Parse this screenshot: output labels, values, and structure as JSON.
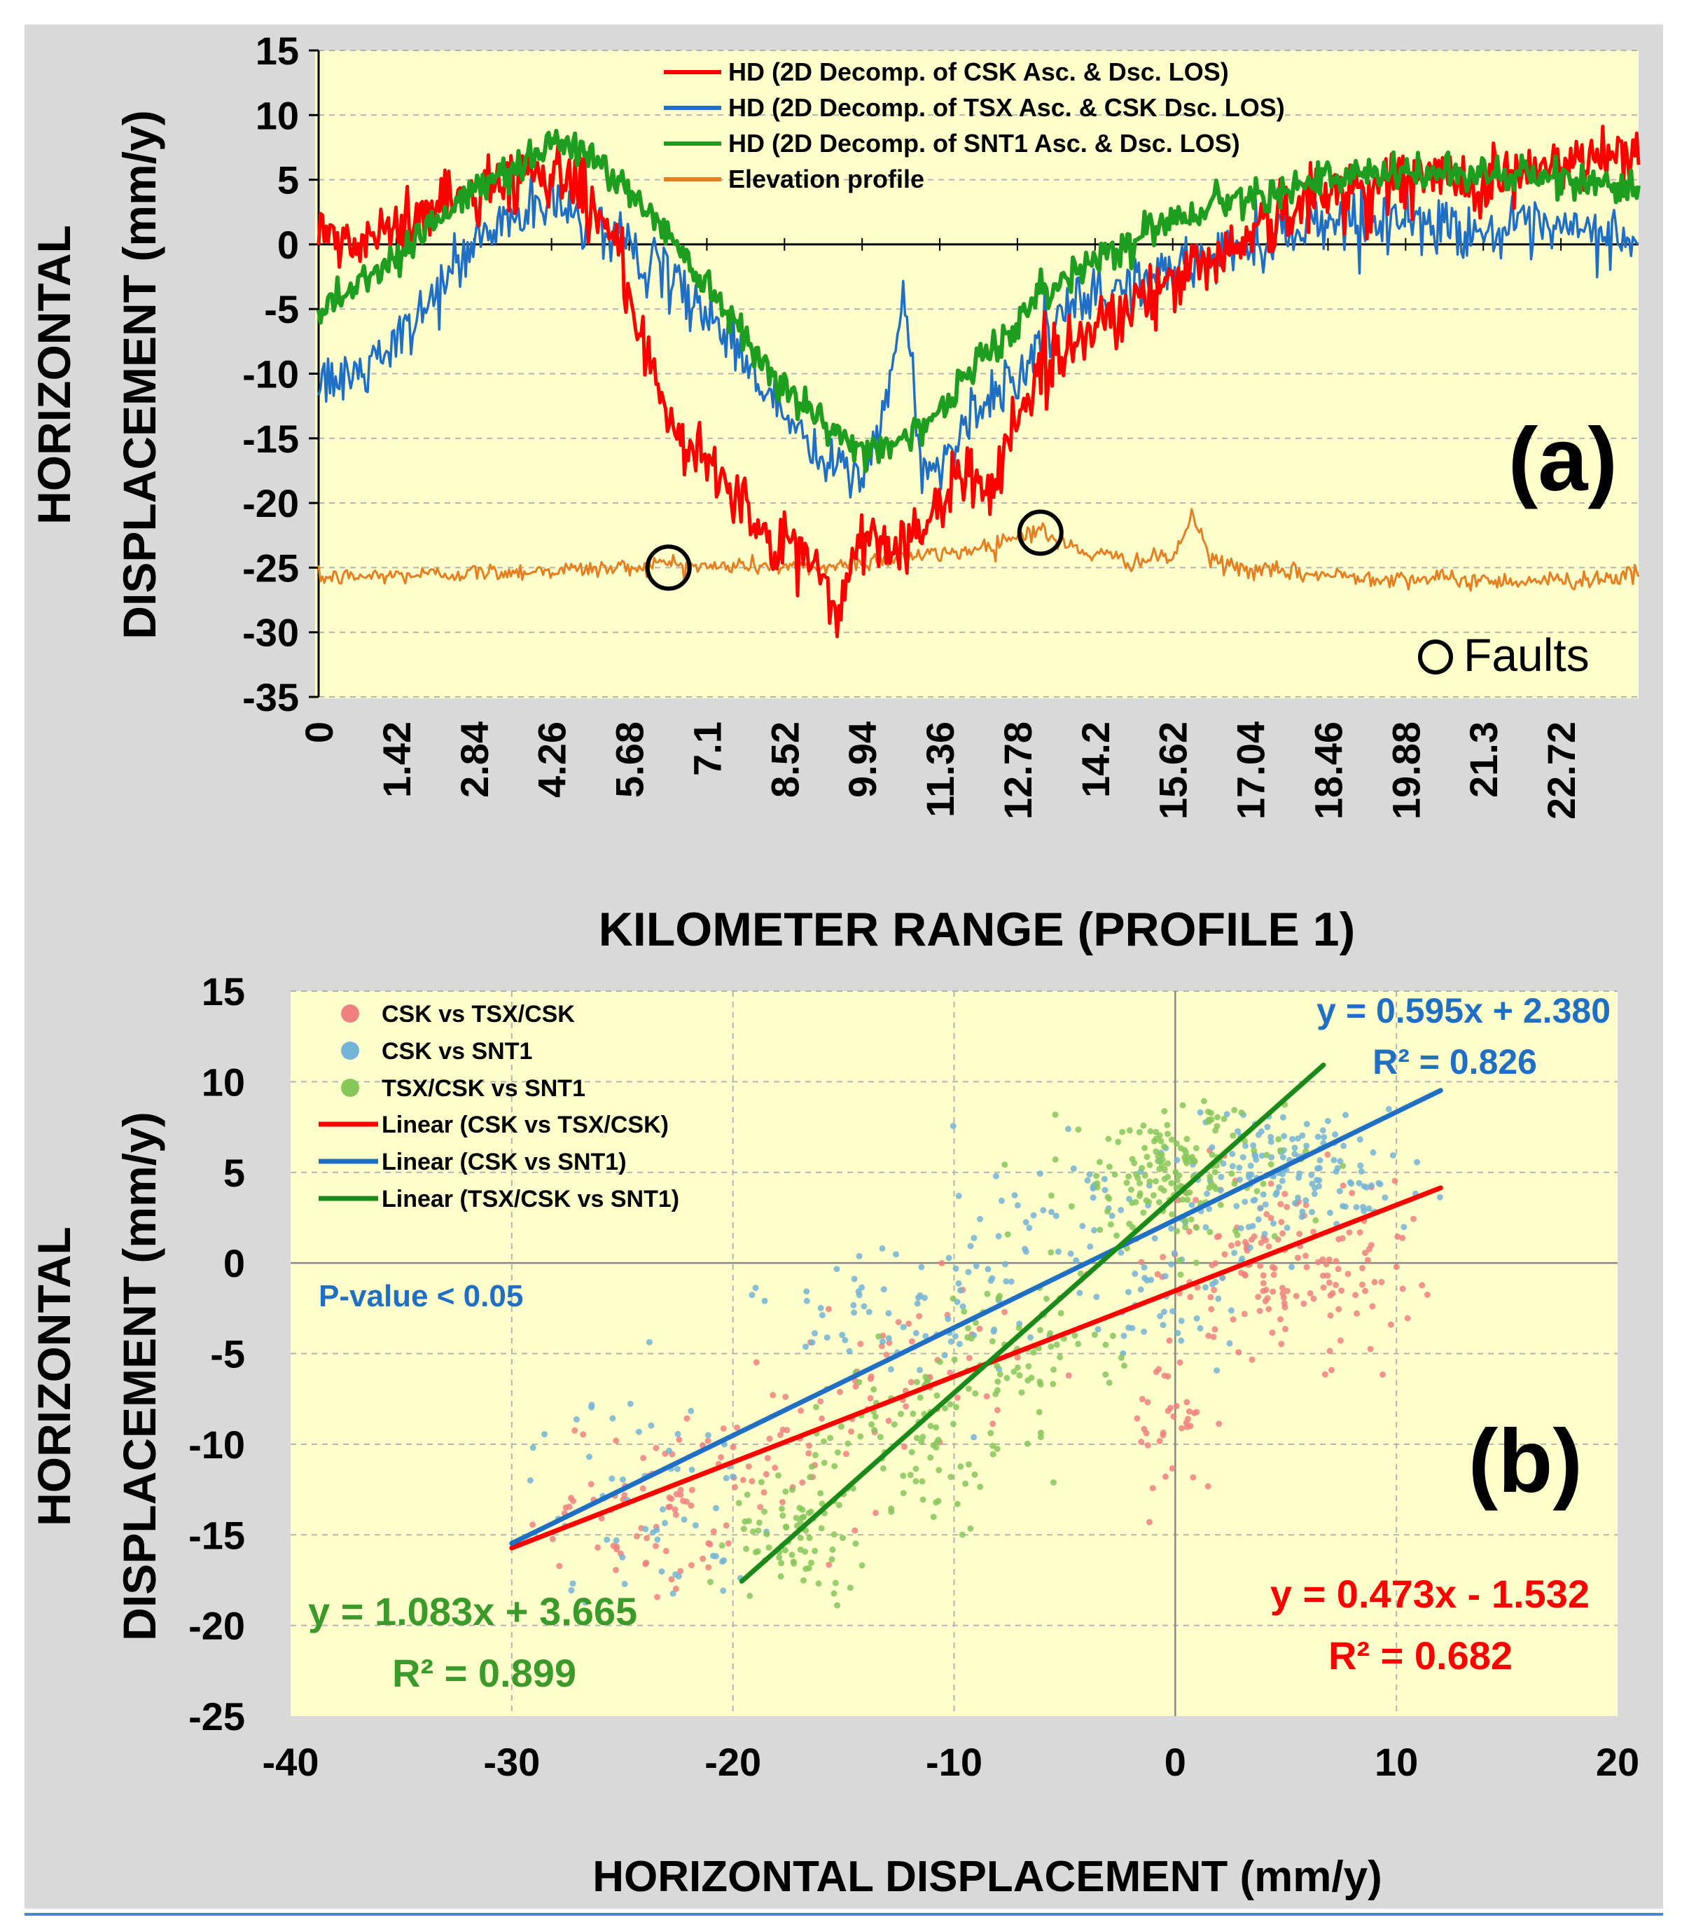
{
  "colors": {
    "panel_bg": "#d9d9d9",
    "plot_bg": "#ffffcc",
    "grid": "#b3b3b3",
    "hd_csk": "#ff0000",
    "hd_tsx": "#1f6fc5",
    "hd_snt1": "#1e9e1e",
    "elevation": "#e67e22",
    "scatter_red": "#f08080",
    "scatter_blue": "#74b4d6",
    "scatter_green": "#86c75a",
    "line_red": "#ff0000",
    "line_blue": "#1f6fc5",
    "line_green": "#1a8a1a",
    "eq_blue": "#1f6fc5",
    "eq_red": "#ff0000",
    "eq_green": "#3a9a2a",
    "rule": "#4a86c8"
  },
  "chart_data": [
    {
      "type": "line",
      "panel_label": "(a)",
      "ylabel_line1": "HORIZONTAL",
      "ylabel_line2": "DISPLACEMENT (mm/y)",
      "xlabel": "KILOMETER RANGE (PROFILE 1)",
      "ylim": [
        -35,
        15
      ],
      "xlim": [
        0,
        24.14
      ],
      "yticks": [
        "15",
        "10",
        "5",
        "0",
        "-5",
        "-10",
        "-15",
        "-20",
        "-25",
        "-30",
        "-35"
      ],
      "xticks": [
        "0",
        "1.42",
        "2.84",
        "4.26",
        "5.68",
        "7.1",
        "8.52",
        "9.94",
        "11.36",
        "12.78",
        "14.2",
        "15.62",
        "17.04",
        "18.46",
        "19.88",
        "21.3",
        "22.72"
      ],
      "xtick_values": [
        0,
        1.42,
        2.84,
        4.26,
        5.68,
        7.1,
        8.52,
        9.94,
        11.36,
        12.78,
        14.2,
        15.62,
        17.04,
        18.46,
        19.88,
        21.3,
        22.72
      ],
      "grid": true,
      "legend_placement": "top-center",
      "series": [
        {
          "name": "HD (2D Decomp. of CSK Asc. & Dsc. LOS)",
          "color": "#ff0000",
          "x": [
            0,
            0.7,
            1.4,
            2.1,
            2.8,
            3.5,
            4.26,
            4.6,
            5.2,
            5.68,
            6.0,
            6.4,
            6.7,
            7.1,
            7.5,
            8.0,
            8.3,
            8.52,
            8.8,
            9.2,
            9.5,
            9.94,
            10.3,
            10.8,
            11.36,
            11.8,
            12.3,
            12.78,
            13.2,
            14.2,
            15.62,
            17.04,
            18.46,
            19.88,
            21.3,
            22.72,
            24.14
          ],
          "y": [
            0.5,
            0,
            1,
            3,
            4,
            5,
            6,
            5,
            2,
            -3,
            -10,
            -14,
            -16,
            -17,
            -18,
            -22,
            -24,
            -23,
            -24,
            -25,
            -29,
            -22,
            -23,
            -23,
            -21,
            -17,
            -19,
            -13,
            -10,
            -6,
            -3,
            1,
            4,
            5,
            5,
            6,
            7
          ]
        },
        {
          "name": "HD (2D Decomp. of TSX Asc. & CSK Dsc. LOS)",
          "color": "#1f6fc5",
          "x": [
            0,
            0.7,
            1.42,
            2.1,
            2.84,
            3.5,
            4.26,
            5.0,
            5.68,
            6.4,
            7.1,
            7.8,
            8.52,
            9.2,
            9.94,
            10.4,
            10.7,
            11.0,
            11.36,
            11.7,
            12.2,
            12.78,
            13.5,
            14.2,
            15.62,
            17.04,
            18.46,
            19.88,
            21.3,
            22.72,
            24.14
          ],
          "y": [
            -11,
            -10,
            -8,
            -4,
            0,
            2,
            3,
            2,
            0,
            -3,
            -5,
            -9,
            -13,
            -17,
            -18,
            -12,
            -4,
            -16,
            -18,
            -14,
            -12,
            -10,
            -6,
            -4,
            -2,
            0,
            2,
            2,
            1,
            1,
            0.5
          ]
        },
        {
          "name": "HD (2D Decomp. of SNT1 Asc. & Dsc. LOS)",
          "color": "#1e9e1e",
          "x": [
            0,
            0.7,
            1.42,
            2.13,
            2.84,
            3.55,
            4.26,
            4.97,
            5.68,
            6.39,
            7.1,
            7.81,
            8.52,
            9.23,
            9.94,
            10.65,
            11.36,
            12.07,
            12.78,
            13.49,
            14.2,
            15.62,
            17.04,
            18.46,
            19.88,
            21.3,
            22.72,
            24.14
          ],
          "y": [
            -5,
            -3,
            -1,
            2,
            4,
            6,
            8,
            7,
            4,
            1,
            -3,
            -7,
            -11,
            -14,
            -16,
            -15,
            -13,
            -9,
            -6,
            -3,
            -1,
            2,
            4,
            5,
            5.5,
            5.5,
            5,
            4.5
          ]
        },
        {
          "name": "Elevation profile",
          "color": "#e67e22",
          "x": [
            0,
            1.42,
            2.84,
            4.26,
            5.68,
            6.39,
            7.1,
            7.81,
            8.52,
            9.23,
            9.94,
            10.65,
            11.36,
            12.07,
            12.78,
            13.2,
            13.49,
            14.2,
            14.91,
            15.62,
            16.0,
            16.33,
            17.04,
            18.46,
            19.88,
            21.3,
            22.72,
            24.14
          ],
          "y": [
            -25.8,
            -25.6,
            -25.4,
            -25.2,
            -25,
            -24.6,
            -25,
            -24.8,
            -25,
            -25,
            -24.5,
            -24.2,
            -24,
            -23.5,
            -22.5,
            -22,
            -23,
            -24,
            -24.5,
            -24.2,
            -21,
            -24.5,
            -25.2,
            -25.6,
            -25.8,
            -26,
            -26,
            -25.6
          ]
        },
        {
          "name": "Faults",
          "type": "marker",
          "color": "#000000",
          "x": [
            6.4,
            13.2
          ],
          "y": [
            -25,
            -22.3
          ]
        }
      ],
      "legend": [
        "HD (2D Decomp. of CSK Asc. & Dsc. LOS)",
        "HD (2D Decomp. of TSX Asc. & CSK Dsc. LOS)",
        "HD (2D Decomp. of SNT1 Asc. & Dsc. LOS)",
        "Elevation profile"
      ],
      "annotation": "Faults"
    },
    {
      "type": "scatter",
      "panel_label": "(b)",
      "ylabel_line1": "HORIZONTAL",
      "ylabel_line2": "DISPLACEMENT (mm/y)",
      "xlabel": "HORIZONTAL DISPLACEMENT (mm/y)",
      "xlim": [
        -40,
        20
      ],
      "ylim": [
        -25,
        15
      ],
      "xticks": [
        "-40",
        "-30",
        "-20",
        "-10",
        "0",
        "10",
        "20"
      ],
      "yticks": [
        "15",
        "10",
        "5",
        "0",
        "-5",
        "-10",
        "-15",
        "-20",
        "-25"
      ],
      "grid": true,
      "legend_placement": "top-left",
      "series": [
        {
          "name": "CSK vs TSX/CSK",
          "color": "#f08080",
          "clusters": [
            {
              "cx": -24,
              "cy": -14,
              "sx": 2.5,
              "sy": 3,
              "n": 70
            },
            {
              "cx": -18,
              "cy": -11,
              "sx": 2.5,
              "sy": 2.5,
              "n": 40
            },
            {
              "cx": -12,
              "cy": -6,
              "sx": 2.5,
              "sy": 2.5,
              "n": 50
            },
            {
              "cx": 0,
              "cy": -9,
              "sx": 1,
              "sy": 2,
              "n": 35
            },
            {
              "cx": 5,
              "cy": 0,
              "sx": 3,
              "sy": 2.5,
              "n": 160
            }
          ]
        },
        {
          "name": "CSK vs SNT1",
          "color": "#74b4d6",
          "clusters": [
            {
              "cx": -24,
              "cy": -13,
              "sx": 2.5,
              "sy": 3,
              "n": 60
            },
            {
              "cx": -13,
              "cy": -3,
              "sx": 3,
              "sy": 2.5,
              "n": 60
            },
            {
              "cx": -5,
              "cy": 2,
              "sx": 2.5,
              "sy": 3,
              "n": 60
            },
            {
              "cx": 0,
              "cy": -2,
              "sx": 1.5,
              "sy": 2,
              "n": 40
            },
            {
              "cx": 5,
              "cy": 5,
              "sx": 3,
              "sy": 1.8,
              "n": 160
            }
          ]
        },
        {
          "name": "TSX/CSK vs SNT1",
          "color": "#86c75a",
          "clusters": [
            {
              "cx": -17,
              "cy": -15,
              "sx": 1.5,
              "sy": 1.5,
              "n": 70
            },
            {
              "cx": -12,
              "cy": -10,
              "sx": 2.5,
              "sy": 2.5,
              "n": 90
            },
            {
              "cx": -7,
              "cy": -5,
              "sx": 2,
              "sy": 2,
              "n": 70
            },
            {
              "cx": 0,
              "cy": 5,
              "sx": 2.5,
              "sy": 2,
              "n": 170
            }
          ]
        }
      ],
      "fits": [
        {
          "name": "Linear (CSK vs TSX/CSK)",
          "color": "#ff0000",
          "slope": 0.473,
          "intercept": -1.532,
          "x_range": [
            -30,
            12
          ],
          "equation": "y = 0.473x - 1.532",
          "r2": "R² = 0.682"
        },
        {
          "name": "Linear (CSK vs SNT1)",
          "color": "#1f6fc5",
          "slope": 0.595,
          "intercept": 2.38,
          "x_range": [
            -30,
            12
          ],
          "equation": "y = 0.595x + 2.380",
          "r2": "R² = 0.826"
        },
        {
          "name": "Linear (TSX/CSK vs SNT1)",
          "color": "#1a8a1a",
          "slope": 1.083,
          "intercept": 3.665,
          "x_range": [
            -19.6,
            6.7
          ],
          "equation": "y = 1.083x + 3.665",
          "r2": "R² = 0.899"
        }
      ],
      "legend": [
        "CSK vs TSX/CSK",
        "CSK vs SNT1",
        "TSX/CSK vs SNT1",
        "Linear (CSK vs TSX/CSK)",
        "Linear (CSK vs SNT1)",
        "Linear (TSX/CSK vs SNT1)"
      ],
      "annotation": "P-value < 0.05"
    }
  ]
}
